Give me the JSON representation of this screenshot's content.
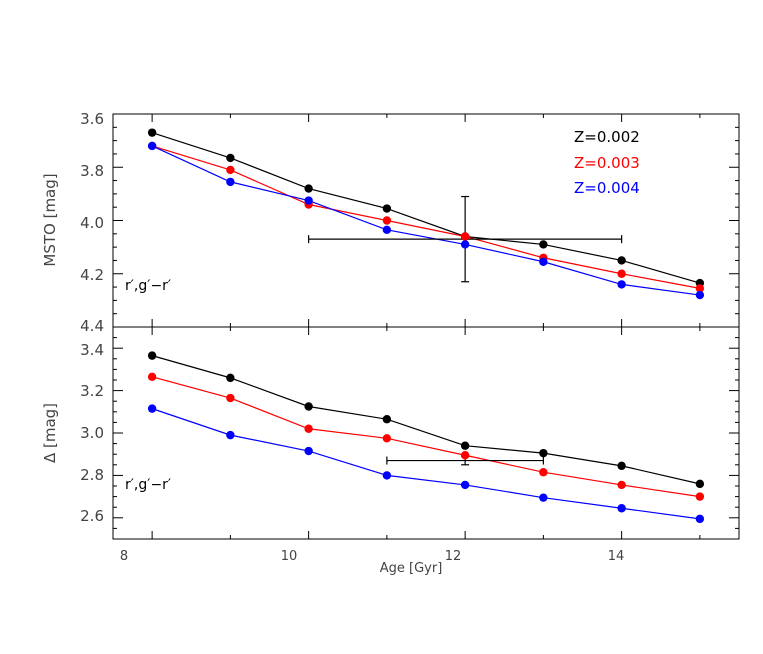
{
  "chart_data": [
    {
      "type": "line",
      "title": "",
      "xlabel": "",
      "ylabel": "MSTO [mag]",
      "ylim": [
        3.6,
        4.4
      ],
      "y_inverted": true,
      "xlim": [
        7.5,
        15.5
      ],
      "yticks": [
        "3.6",
        "3.8",
        "4.0",
        "4.2",
        "4.4"
      ],
      "annotation": "r′,g′−r′",
      "x": [
        8,
        9,
        10,
        11,
        12,
        13,
        14,
        15
      ],
      "series": [
        {
          "name": "Z=0.002",
          "color": "#000000",
          "values": [
            3.67,
            3.765,
            3.88,
            3.955,
            4.06,
            4.09,
            4.15,
            4.235
          ]
        },
        {
          "name": "Z=0.003",
          "color": "#ff0000",
          "values": [
            3.72,
            3.81,
            3.94,
            4.0,
            4.06,
            4.14,
            4.2,
            4.255
          ]
        },
        {
          "name": "Z=0.004",
          "color": "#0000ff",
          "values": [
            3.72,
            3.855,
            3.925,
            4.035,
            4.09,
            4.155,
            4.24,
            4.28
          ]
        }
      ],
      "error_bar": {
        "x": 12,
        "y": 4.07,
        "xerr": 2,
        "yerr": 0.16
      },
      "legend_position": "top-right"
    },
    {
      "type": "line",
      "title": "",
      "xlabel": "Age [Gyr]",
      "ylabel": "Δ [mag]",
      "ylim": [
        2.5,
        3.5
      ],
      "xlim": [
        7.5,
        15.5
      ],
      "yticks": [
        "2.6",
        "2.8",
        "3.0",
        "3.2",
        "3.4"
      ],
      "xticks": [
        "8",
        "10",
        "12",
        "14"
      ],
      "annotation": "r′,g′−r′",
      "x": [
        8,
        9,
        10,
        11,
        12,
        13,
        14,
        15
      ],
      "series": [
        {
          "name": "Z=0.002",
          "color": "#000000",
          "values": [
            3.365,
            3.26,
            3.125,
            3.065,
            2.94,
            2.905,
            2.845,
            2.76
          ]
        },
        {
          "name": "Z=0.003",
          "color": "#ff0000",
          "values": [
            3.265,
            3.165,
            3.02,
            2.975,
            2.895,
            2.815,
            2.755,
            2.7
          ]
        },
        {
          "name": "Z=0.004",
          "color": "#0000ff",
          "values": [
            3.115,
            2.99,
            2.915,
            2.8,
            2.755,
            2.695,
            2.645,
            2.595
          ]
        }
      ],
      "error_bar": {
        "x": 12,
        "y": 2.87,
        "xerr": 1,
        "yerr": 0.02
      }
    }
  ]
}
